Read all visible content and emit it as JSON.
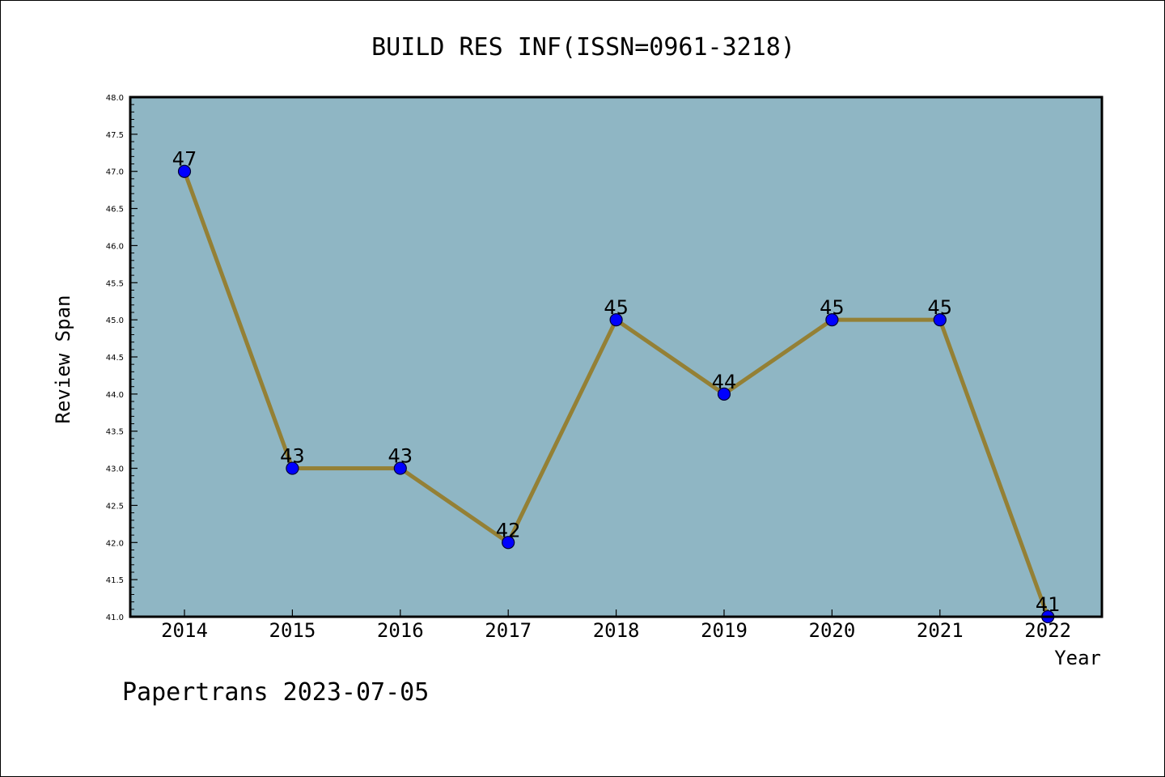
{
  "chart_data": {
    "type": "line",
    "title": "BUILD RES INF(ISSN=0961-3218)",
    "xlabel": "Year",
    "ylabel": "Review Span",
    "categories": [
      "2014",
      "2015",
      "2016",
      "2017",
      "2018",
      "2019",
      "2020",
      "2021",
      "2022"
    ],
    "values": [
      47,
      43,
      43,
      42,
      45,
      44,
      45,
      45,
      41
    ],
    "data_labels": [
      "47",
      "43",
      "43",
      "42",
      "45",
      "44",
      "45",
      "45",
      "41"
    ],
    "ylim": [
      41.0,
      48.0
    ],
    "y_ticks": [
      "41.0",
      "41.5",
      "42.0",
      "42.5",
      "43.0",
      "43.5",
      "44.0",
      "44.5",
      "45.0",
      "45.5",
      "46.0",
      "46.5",
      "47.0",
      "47.5",
      "48.0"
    ],
    "grid": false,
    "legend": "none",
    "footer": "Papertrans 2023-07-05",
    "colors": {
      "plot_background": "#8fb6c4",
      "line": "#948035",
      "marker": "#0000ff",
      "marker_edge": "#000033",
      "text": "#000000"
    }
  }
}
